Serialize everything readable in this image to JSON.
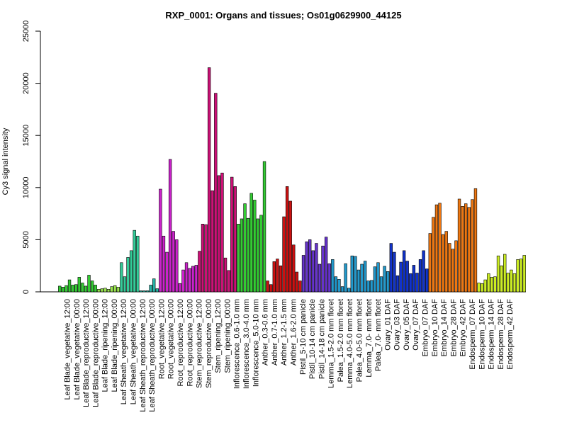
{
  "chart_data": {
    "type": "bar",
    "title": "RXP_0001: Organs and tissues; Os01g0629900_44125",
    "xlabel": "",
    "ylabel": "Cy3 signal intensity",
    "ylim": [
      0,
      25000
    ],
    "yticks": [
      0,
      5000,
      10000,
      15000,
      20000,
      25000
    ],
    "grid": false,
    "legend": "none",
    "tick_labels": [
      "Leaf Blade_vegetative_12:00",
      "Leaf Blade_vegetative_00:00",
      "Leaf Blade_reproductive_12:00",
      "Leaf Blade_reproductive_00:00",
      "Leaf Blade_ripening_12:00",
      "Leaf Blade_ripening_00:00",
      "Leaf Sheath_vegetative_12:00",
      "Leaf Sheath_vegetative_00:00",
      "Leaf Sheath_reproductive_12:00",
      "Leaf Sheath_reproductive_00:00",
      "Root_vegetative_12:00",
      "Root_vegetative_00:00",
      "Root_reproductive_12:00",
      "Root_reproductive_00:00",
      "Stem_reproductive_12:00",
      "Stem_reproductive_00:00",
      "Stem_ripening_12:00",
      "Stem_ripening_00:00",
      "Inflorescence_0.6-1.0 mm",
      "Inflorescence_3.0-4.0 mm",
      "Inflorescence_5.0-10 mm",
      "Anther_0.3-0.6 mm",
      "Anther_0.7-1.0 mm",
      "Anther_1.2-1.5 mm",
      "Anther_1.6-2.0 mm",
      "Pistil_5-10 cm panicle",
      "Pistil_10-14 cm panicle",
      "Pistil_14-18 cm panicle",
      "Lemma_1.5-2.0 mm floret",
      "Palea_1.5-2.0 mm floret",
      "Lemma_4.0-5.0 mm floret",
      "Palea_4.0-5.0 mm floret",
      "Lemma_7.0- mm floret",
      "Palea_7.0- mm floret",
      "Ovary_01 DAF",
      "Ovary_03 DAF",
      "Ovary_05 DAF",
      "Ovary_07 DAF",
      "Embryo_07 DAF",
      "Embryo_10 DAF",
      "Embryo_14 DAF",
      "Embryo_28 DAF",
      "Embryo_42 DAF",
      "Endosperm_07 DAF",
      "Endosperm_10 DAF",
      "Endosperm_14 DAF",
      "Endosperm_28 DAF",
      "Endosperm_42 DAF"
    ],
    "groups": [
      {
        "color": "#33cc33",
        "values": [
          550,
          450,
          600,
          1150,
          650,
          700,
          1400,
          850,
          550,
          1600,
          1050,
          650
        ]
      },
      {
        "color": "#99e64d",
        "values": [
          250,
          300,
          350,
          250,
          500,
          600,
          450
        ]
      },
      {
        "color": "#33cc99",
        "values": [
          2800,
          1450,
          3300,
          3950,
          5900,
          5350
        ]
      },
      {
        "color": "#26b3a6",
        "values": [
          100,
          100,
          100,
          650,
          1250,
          300
        ]
      },
      {
        "color": "#cc22cc",
        "values": [
          9850,
          5350,
          3800,
          12700,
          5800,
          5000,
          800,
          2100,
          2800,
          2250,
          2450,
          2550
        ]
      },
      {
        "color": "#cc1177",
        "values": [
          3900,
          6500,
          6450,
          21500,
          9700,
          19050,
          11150,
          11400,
          3250,
          2050,
          11000,
          10100
        ]
      },
      {
        "color": "#33cc33",
        "values": [
          6500,
          7000,
          8450,
          7050,
          9450,
          8800,
          7000,
          7350,
          12500
        ]
      },
      {
        "color": "#cc1111",
        "values": [
          1050,
          700,
          2900,
          3150,
          2500,
          7200,
          10100,
          8700,
          4500,
          1900,
          1050
        ]
      },
      {
        "color": "#6633cc",
        "values": [
          3500,
          4800,
          5000,
          3950,
          4650,
          2650,
          4400,
          5250,
          2700
        ]
      },
      {
        "color": "#2299cc",
        "values": [
          3100,
          1450,
          1200,
          500,
          2700,
          350,
          3450,
          3400,
          2100,
          2650,
          2950,
          1050,
          1100,
          2400,
          2800,
          1450,
          2450,
          1950
        ]
      },
      {
        "color": "#1133cc",
        "values": [
          4650,
          3800,
          1550,
          2850,
          3950,
          2950,
          1750,
          2550,
          1800,
          3100,
          3950,
          2200
        ]
      },
      {
        "color": "#ee7711",
        "values": [
          5600,
          7150,
          8350,
          8500,
          5500,
          5800,
          4650,
          4100,
          4900,
          8900,
          8200,
          8450,
          8100,
          8850,
          9900
        ]
      },
      {
        "color": "#ccee22",
        "values": [
          850,
          800,
          1150,
          1750,
          1400,
          1450,
          3450,
          2500,
          3600,
          1800,
          2100,
          1750,
          3100,
          3150,
          3500
        ]
      }
    ]
  }
}
